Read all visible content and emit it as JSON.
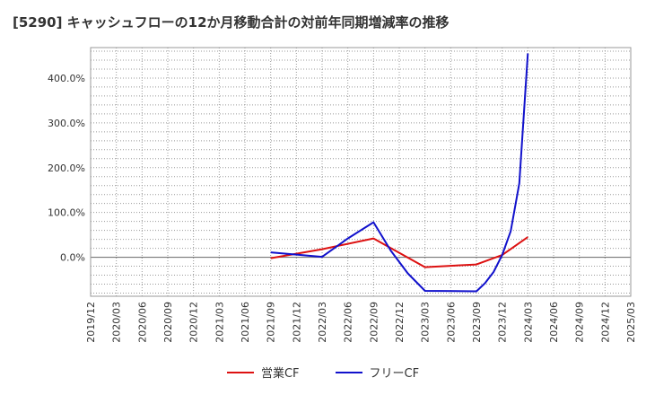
{
  "chart_data": {
    "type": "line",
    "title": "[5290]  キャッシュフローの12か月移動合計の対前年同期増減率の推移",
    "xlabel": "",
    "ylabel": "",
    "ylim": [
      -87,
      468
    ],
    "yticks": [
      0,
      100,
      200,
      300,
      400
    ],
    "ytick_labels": [
      "0.0%",
      "100.0%",
      "200.0%",
      "300.0%",
      "400.0%"
    ],
    "x_tick_labels": [
      "2019/12",
      "2020/03",
      "2020/06",
      "2020/09",
      "2020/12",
      "2021/03",
      "2021/06",
      "2021/09",
      "2021/12",
      "2022/03",
      "2022/06",
      "2022/09",
      "2022/12",
      "2023/03",
      "2023/06",
      "2023/09",
      "2023/12",
      "2024/03",
      "2024/06",
      "2024/09",
      "2024/12",
      "2025/03"
    ],
    "grid": true,
    "legend_position": "bottom",
    "series": [
      {
        "name": "営業CF",
        "color": "#dd1111",
        "points": [
          [
            7,
            -2
          ],
          [
            9,
            18
          ],
          [
            11,
            42
          ],
          [
            13,
            -22
          ],
          [
            15,
            -16
          ],
          [
            16,
            5
          ],
          [
            17,
            45
          ]
        ]
      },
      {
        "name": "フリーCF",
        "color": "#1111cc",
        "points": [
          [
            7,
            11
          ],
          [
            9,
            1
          ],
          [
            10,
            42
          ],
          [
            11,
            78
          ],
          [
            11.667,
            15
          ],
          [
            12.333,
            -36
          ],
          [
            13,
            -75
          ],
          [
            15,
            -76
          ],
          [
            15.333,
            -58
          ],
          [
            15.667,
            -33
          ],
          [
            16,
            5
          ],
          [
            16.333,
            58
          ],
          [
            16.667,
            165
          ],
          [
            17,
            455
          ]
        ]
      }
    ]
  }
}
